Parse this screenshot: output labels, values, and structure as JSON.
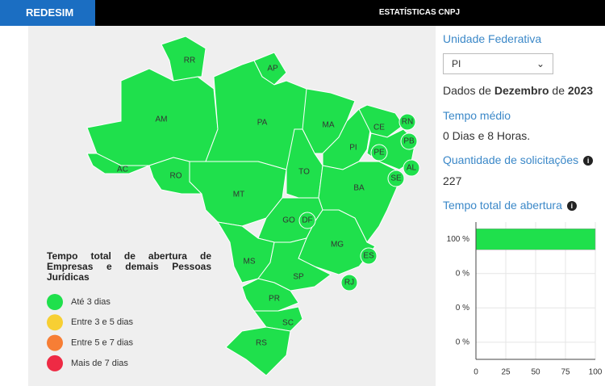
{
  "header": {
    "logo": "REDESIM",
    "title": "ESTATÍSTICAS CNPJ"
  },
  "map": {
    "states": [
      "RR",
      "AP",
      "AM",
      "PA",
      "MA",
      "CE",
      "RN",
      "PB",
      "PI",
      "PE",
      "AL",
      "SE",
      "AC",
      "RO",
      "TO",
      "MT",
      "BA",
      "GO",
      "DF",
      "MG",
      "ES",
      "MS",
      "SP",
      "RJ",
      "PR",
      "SC",
      "RS"
    ]
  },
  "legend": {
    "title": "Tempo total de abertura de Empresas e demais Pessoas Jurídicas",
    "items": [
      {
        "label": "Até 3 dias",
        "color": "#1fe04c"
      },
      {
        "label": "Entre 3 e 5 dias",
        "color": "#f7cf33"
      },
      {
        "label": "Entre 5 e 7 dias",
        "color": "#f77e35"
      },
      {
        "label": "Mais de 7 dias",
        "color": "#ee2a44"
      }
    ]
  },
  "panel": {
    "uf_label": "Unidade Federativa",
    "uf_selected": "PI",
    "dados_prefix": "Dados de",
    "month": "Dezembro",
    "connector": "de",
    "year": "2023",
    "tempo_medio_label": "Tempo médio",
    "tempo_medio_value": "0 Dias e 8 Horas.",
    "quantidade_label": "Quantidade de solicitações",
    "quantidade_value": "227",
    "tempo_total_label": "Tempo total de abertura"
  },
  "chart": {
    "type": "bar",
    "categories": [
      "100 %",
      "0 %",
      "0 %",
      "0 %"
    ],
    "values": [
      100,
      0,
      0,
      0
    ],
    "color": "#1fe04c",
    "xlim": [
      0,
      100
    ],
    "xticks": [
      0,
      25,
      50,
      75,
      100
    ],
    "grid": true
  }
}
